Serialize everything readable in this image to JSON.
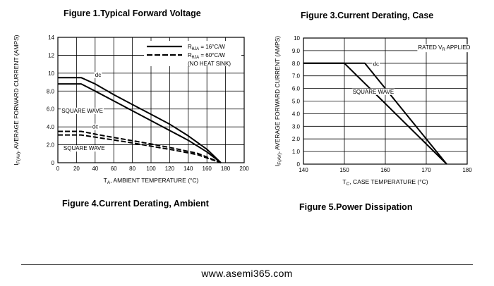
{
  "titles": {
    "fig1": "Figure 1.Typical  Forward  Voltage",
    "fig3": "Figure 3.Current  Derating,  Case",
    "fig4": "Figure 4.Current  Derating, Ambient",
    "fig5": "Figure 5.Power  Dissipation"
  },
  "footer": {
    "site": "www.asemi365.com"
  },
  "chart_data": [
    {
      "type": "line",
      "title": "",
      "xlabel_parts": [
        "T",
        "A",
        ", AMBIENT TEMPERATURE (°C)"
      ],
      "ylabel_parts": [
        "I",
        "F(AV)",
        ", AVERAGE FORWARD CURRENT (AMPS)"
      ],
      "xlim": [
        0,
        200
      ],
      "ylim": [
        0,
        14
      ],
      "x_ticks": [
        "0",
        "20",
        "40",
        "60",
        "80",
        "100",
        "120",
        "140",
        "160",
        "180",
        "200"
      ],
      "y_ticks": [
        "0",
        "2.0",
        "4.0",
        "6.0",
        "8.0",
        "10",
        "12",
        "14"
      ],
      "grid": true,
      "legend": {
        "position": "top-right",
        "entries": [
          {
            "style": "solid",
            "parts": [
              "R",
              "θJA",
              " = 16°C/W"
            ]
          },
          {
            "style": "dashed",
            "parts": [
              "R",
              "θJA",
              " = 60°C/W"
            ]
          },
          {
            "style": "none",
            "parts": [
              "(NO HEAT SINK)"
            ]
          }
        ]
      },
      "annotations": [
        {
          "text": "dc",
          "x": 40,
          "y": 9.6
        },
        {
          "text": "SQUARE WAVE",
          "x": 4,
          "y": 5.6
        },
        {
          "text": "dc",
          "x": 37,
          "y": 3.8
        },
        {
          "text": "SQUARE WAVE",
          "x": 6,
          "y": 1.4
        }
      ],
      "series": [
        {
          "style": "solid",
          "x": [
            0,
            25,
            40,
            60,
            80,
            100,
            120,
            140,
            160,
            175
          ],
          "y": [
            9.5,
            9.5,
            8.8,
            7.6,
            6.5,
            5.4,
            4.3,
            3.0,
            1.5,
            0
          ]
        },
        {
          "style": "solid",
          "x": [
            0,
            25,
            40,
            60,
            80,
            100,
            120,
            140,
            160,
            175
          ],
          "y": [
            8.8,
            8.8,
            8.0,
            6.9,
            5.8,
            4.7,
            3.6,
            2.5,
            1.2,
            0
          ]
        },
        {
          "style": "dashed",
          "x": [
            0,
            25,
            50,
            75,
            100,
            125,
            150,
            175
          ],
          "y": [
            3.5,
            3.5,
            3.0,
            2.55,
            2.1,
            1.6,
            1.05,
            0
          ]
        },
        {
          "style": "dashed",
          "x": [
            0,
            25,
            50,
            75,
            100,
            125,
            150,
            175
          ],
          "y": [
            3.1,
            3.1,
            2.7,
            2.3,
            1.85,
            1.4,
            0.9,
            0
          ]
        }
      ]
    },
    {
      "type": "line",
      "title": "",
      "xlabel_parts": [
        "T",
        "C",
        ", CASE TEMPERATURE (°C)"
      ],
      "ylabel_parts": [
        "I",
        "F(AV)",
        ", AVERAGE FORWARD CURRENT (AMPS)"
      ],
      "xlim": [
        140,
        180
      ],
      "ylim": [
        0,
        10
      ],
      "x_ticks": [
        "140",
        "150",
        "160",
        "170",
        "180"
      ],
      "y_ticks": [
        "0",
        "1.0",
        "2.0",
        "3.0",
        "4.0",
        "5.0",
        "6.0",
        "7.0",
        "8.0",
        "9.0",
        "10"
      ],
      "grid": true,
      "annotations": [
        {
          "parts": [
            "RATED V",
            "R",
            " APPLIED"
          ],
          "x": 168,
          "y": 9.1
        },
        {
          "text": "dc",
          "x": 157,
          "y": 7.8
        },
        {
          "text": "SQUARE WAVE",
          "x": 152,
          "y": 5.6
        }
      ],
      "series": [
        {
          "style": "solid",
          "x": [
            140,
            155,
            175
          ],
          "y": [
            8.0,
            8.0,
            0
          ]
        },
        {
          "style": "solid",
          "x": [
            140,
            150,
            175
          ],
          "y": [
            8.0,
            8.0,
            0
          ]
        }
      ]
    }
  ]
}
